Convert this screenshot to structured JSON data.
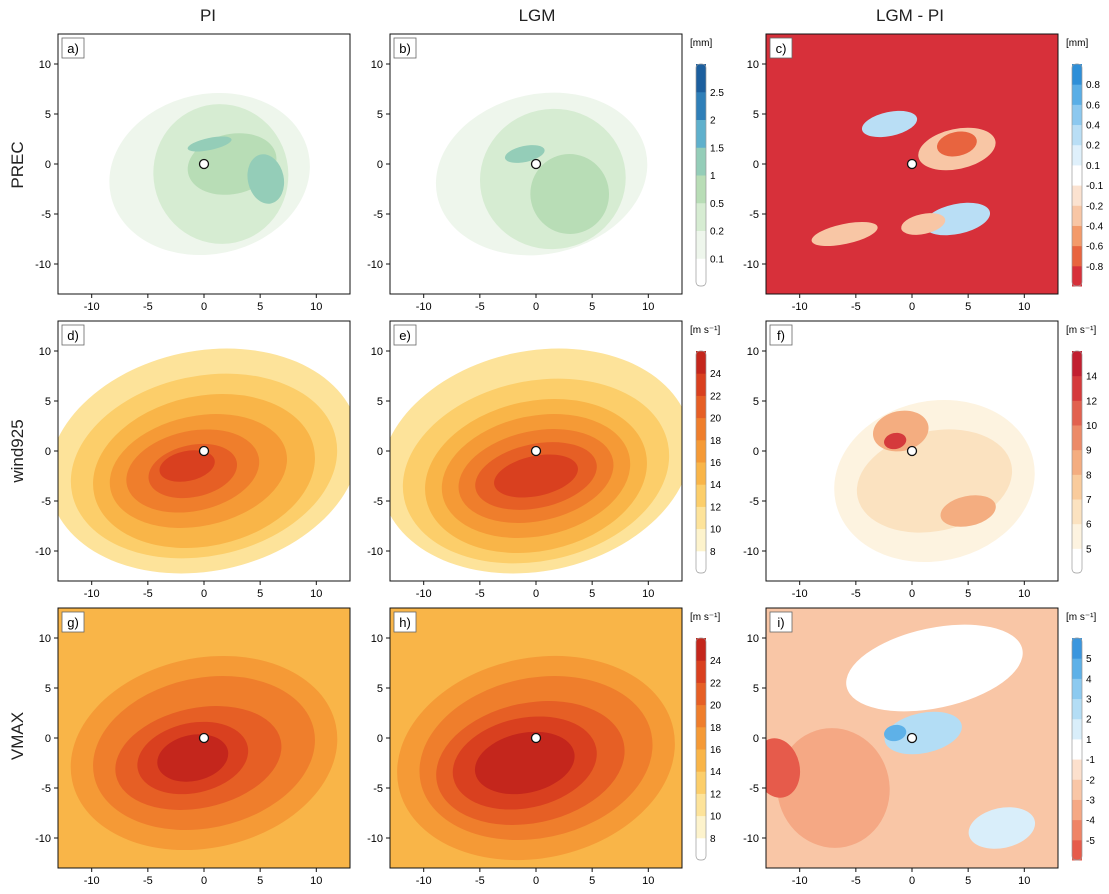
{
  "columns": [
    "PI",
    "LGM",
    "LGM - PI"
  ],
  "rows": [
    "PREC",
    "wind925",
    "VMAX"
  ],
  "chart_data": [
    {
      "type": "heatmap",
      "panel": "a)",
      "row": "PREC",
      "column": "PI",
      "xlim": [
        -13,
        13
      ],
      "ylim": [
        -13,
        13
      ],
      "xticks": [
        -10,
        -5,
        0,
        5,
        10
      ],
      "yticks": [
        10,
        5,
        0,
        -5,
        -10
      ],
      "colorbar": {
        "unit": "[mm]",
        "ticks": [
          "2.5",
          "2",
          "1.5",
          "1",
          "0.5",
          "0.2",
          "0.1"
        ],
        "colors": [
          "#ffffff",
          "#eef6ec",
          "#d6ecd2",
          "#b8ddb6",
          "#94cdb8",
          "#5fb0cc",
          "#2f7fb8",
          "#1c5f9e"
        ]
      },
      "fields": [
        {
          "cx": 0.5,
          "cy": -1,
          "rx": 9,
          "ry": 8,
          "lvl": 1
        },
        {
          "cx": 1.5,
          "cy": -1,
          "rx": 6,
          "ry": 7,
          "lvl": 2
        },
        {
          "cx": 2.5,
          "cy": 0,
          "rx": 4,
          "ry": 3,
          "lvl": 3
        },
        {
          "cx": 5.5,
          "cy": -1.5,
          "rx": 1.6,
          "ry": 2.5,
          "lvl": 4
        },
        {
          "cx": 0.5,
          "cy": 2,
          "rx": 2,
          "ry": 0.6,
          "lvl": 4
        }
      ]
    },
    {
      "type": "heatmap",
      "panel": "b)",
      "row": "PREC",
      "column": "LGM",
      "xlim": [
        -13,
        13
      ],
      "ylim": [
        -13,
        13
      ],
      "xticks": [
        -10,
        -5,
        0,
        5,
        10
      ],
      "yticks": [
        10,
        5,
        0,
        -5,
        -10
      ],
      "colorbar": {
        "unit": "[mm]",
        "ticks": [
          "2.5",
          "2",
          "1.5",
          "1",
          "0.5",
          "0.2",
          "0.1"
        ],
        "colors": [
          "#ffffff",
          "#eef6ec",
          "#d6ecd2",
          "#b8ddb6",
          "#94cdb8",
          "#5fb0cc",
          "#2f7fb8",
          "#1c5f9e"
        ]
      },
      "fields": [
        {
          "cx": 0.5,
          "cy": -1,
          "rx": 9.5,
          "ry": 8,
          "lvl": 1
        },
        {
          "cx": 1.5,
          "cy": -1.5,
          "rx": 6.5,
          "ry": 7,
          "lvl": 2
        },
        {
          "cx": 3,
          "cy": -3,
          "rx": 3.5,
          "ry": 4,
          "lvl": 3
        },
        {
          "cx": -1,
          "cy": 1,
          "rx": 1.8,
          "ry": 0.8,
          "lvl": 4
        }
      ]
    },
    {
      "type": "heatmap",
      "panel": "c)",
      "row": "PREC",
      "column": "LGM - PI",
      "xlim": [
        -13,
        13
      ],
      "ylim": [
        -13,
        13
      ],
      "xticks": [
        -10,
        -5,
        0,
        5,
        10
      ],
      "yticks": [
        10,
        5,
        0,
        -5,
        -10
      ],
      "colorbar": {
        "unit": "[mm]",
        "ticks": [
          "0.8",
          "0.6",
          "0.4",
          "0.2",
          "0.1",
          "-0.1",
          "-0.2",
          "-0.4",
          "-0.6",
          "-0.8"
        ],
        "colors": [
          "#d7303a",
          "#e8643f",
          "#f39a6a",
          "#f8c6a5",
          "#fbe2d0",
          "#ffffff",
          "#dff0fb",
          "#b9def5",
          "#8cc8ef",
          "#5aaee6",
          "#2e8fd8"
        ]
      },
      "fields": [
        {
          "cx": 4,
          "cy": 1.5,
          "rx": 3.5,
          "ry": 2,
          "lvl": 3
        },
        {
          "cx": 4,
          "cy": 2,
          "rx": 1.8,
          "ry": 1.2,
          "lvl": 1
        },
        {
          "cx": -2,
          "cy": 4,
          "rx": 2.5,
          "ry": 1.2,
          "lvl": 7
        },
        {
          "cx": 4,
          "cy": -5.5,
          "rx": 3,
          "ry": 1.5,
          "lvl": 7
        },
        {
          "cx": -6,
          "cy": -7,
          "rx": 3,
          "ry": 1,
          "lvl": 3
        },
        {
          "cx": 1,
          "cy": -6,
          "rx": 2,
          "ry": 1,
          "lvl": 3
        }
      ]
    },
    {
      "type": "heatmap",
      "panel": "d)",
      "row": "wind925",
      "column": "PI",
      "xlim": [
        -13,
        13
      ],
      "ylim": [
        -13,
        13
      ],
      "xticks": [
        -10,
        -5,
        0,
        5,
        10
      ],
      "yticks": [
        10,
        5,
        0,
        -5,
        -10
      ],
      "colorbar": {
        "unit": "[m s⁻¹]",
        "ticks": [
          "24",
          "22",
          "20",
          "18",
          "16",
          "14",
          "12",
          "10",
          "8"
        ],
        "colors": [
          "#ffffff",
          "#fdf3cc",
          "#fde39a",
          "#fcce6a",
          "#f9b548",
          "#f59a36",
          "#ef7e2c",
          "#e65f25",
          "#d9401f",
          "#c4261c"
        ]
      },
      "fields": [
        {
          "cx": 0,
          "cy": -1,
          "rx": 14,
          "ry": 11,
          "lvl": 2
        },
        {
          "cx": 0,
          "cy": -1.5,
          "rx": 12,
          "ry": 9,
          "lvl": 3
        },
        {
          "cx": 0,
          "cy": -2,
          "rx": 10,
          "ry": 7.5,
          "lvl": 4
        },
        {
          "cx": -0.5,
          "cy": -2,
          "rx": 8,
          "ry": 5.5,
          "lvl": 5
        },
        {
          "cx": -1,
          "cy": -2,
          "rx": 6,
          "ry": 4,
          "lvl": 6
        },
        {
          "cx": -1,
          "cy": -2,
          "rx": 4,
          "ry": 2.6,
          "lvl": 7
        },
        {
          "cx": -1.5,
          "cy": -1.5,
          "rx": 2.5,
          "ry": 1.5,
          "lvl": 8
        }
      ]
    },
    {
      "type": "heatmap",
      "panel": "e)",
      "row": "wind925",
      "column": "LGM",
      "xlim": [
        -13,
        13
      ],
      "ylim": [
        -13,
        13
      ],
      "xticks": [
        -10,
        -5,
        0,
        5,
        10
      ],
      "yticks": [
        10,
        5,
        0,
        -5,
        -10
      ],
      "colorbar": {
        "unit": "[m s⁻¹]",
        "ticks": [
          "24",
          "22",
          "20",
          "18",
          "16",
          "14",
          "12",
          "10",
          "8"
        ],
        "colors": [
          "#ffffff",
          "#fdf3cc",
          "#fde39a",
          "#fcce6a",
          "#f9b548",
          "#f59a36",
          "#ef7e2c",
          "#e65f25",
          "#d9401f",
          "#c4261c"
        ]
      },
      "fields": [
        {
          "cx": 0,
          "cy": -1,
          "rx": 14,
          "ry": 11,
          "lvl": 2
        },
        {
          "cx": 0,
          "cy": -2,
          "rx": 12,
          "ry": 9,
          "lvl": 3
        },
        {
          "cx": 0,
          "cy": -2.5,
          "rx": 10,
          "ry": 7.5,
          "lvl": 4
        },
        {
          "cx": 0,
          "cy": -2.5,
          "rx": 8.5,
          "ry": 6,
          "lvl": 5
        },
        {
          "cx": 0,
          "cy": -2.5,
          "rx": 7,
          "ry": 4.5,
          "lvl": 6
        },
        {
          "cx": 0,
          "cy": -2.5,
          "rx": 5.5,
          "ry": 3.2,
          "lvl": 7
        },
        {
          "cx": 0,
          "cy": -2.5,
          "rx": 3.8,
          "ry": 2,
          "lvl": 8
        }
      ]
    },
    {
      "type": "heatmap",
      "panel": "f)",
      "row": "wind925",
      "column": "LGM - PI",
      "xlim": [
        -13,
        13
      ],
      "ylim": [
        -13,
        13
      ],
      "xticks": [
        -10,
        -5,
        0,
        5,
        10
      ],
      "yticks": [
        10,
        5,
        0,
        -5,
        -10
      ],
      "colorbar": {
        "unit": "[m s⁻¹]",
        "ticks": [
          "14",
          "12",
          "10",
          "9",
          "8",
          "7",
          "6",
          "5"
        ],
        "colors": [
          "#ffffff",
          "#fdf3e0",
          "#fbe2c0",
          "#f9cb9c",
          "#f4ad80",
          "#ec8a68",
          "#e2614f",
          "#d53a3c",
          "#c21f30"
        ]
      },
      "fields": [
        {
          "cx": 2,
          "cy": -3,
          "rx": 9,
          "ry": 8,
          "lvl": 1
        },
        {
          "cx": 2,
          "cy": -3,
          "rx": 7,
          "ry": 5,
          "lvl": 2
        },
        {
          "cx": -1,
          "cy": 2,
          "rx": 2.5,
          "ry": 2,
          "lvl": 4
        },
        {
          "cx": -1.5,
          "cy": 1,
          "rx": 1,
          "ry": 0.8,
          "lvl": 7
        },
        {
          "cx": 5,
          "cy": -6,
          "rx": 2.5,
          "ry": 1.5,
          "lvl": 4
        }
      ]
    },
    {
      "type": "heatmap",
      "panel": "g)",
      "row": "VMAX",
      "column": "PI",
      "xlim": [
        -13,
        13
      ],
      "ylim": [
        -13,
        13
      ],
      "xticks": [
        -10,
        -5,
        0,
        5,
        10
      ],
      "yticks": [
        10,
        5,
        0,
        -5,
        -10
      ],
      "colorbar": {
        "unit": "[m s⁻¹]",
        "ticks": [
          "24",
          "22",
          "20",
          "18",
          "16",
          "14",
          "12",
          "10",
          "8"
        ],
        "colors": [
          "#ffffff",
          "#fdf3cc",
          "#fde39a",
          "#fcce6a",
          "#f9b548",
          "#f59a36",
          "#ef7e2c",
          "#e65f25",
          "#d9401f",
          "#c4261c"
        ]
      },
      "background_level": 4,
      "fields": [
        {
          "cx": 0,
          "cy": -1.5,
          "rx": 12,
          "ry": 9.5,
          "lvl": 5
        },
        {
          "cx": 0,
          "cy": -1.5,
          "rx": 10,
          "ry": 7.5,
          "lvl": 6
        },
        {
          "cx": -0.5,
          "cy": -2,
          "rx": 7.5,
          "ry": 5,
          "lvl": 7
        },
        {
          "cx": -1,
          "cy": -2,
          "rx": 5,
          "ry": 3.5,
          "lvl": 8
        },
        {
          "cx": -1,
          "cy": -2,
          "rx": 3.2,
          "ry": 2.3,
          "lvl": 9
        }
      ]
    },
    {
      "type": "heatmap",
      "panel": "h)",
      "row": "VMAX",
      "column": "LGM",
      "xlim": [
        -13,
        13
      ],
      "ylim": [
        -13,
        13
      ],
      "xticks": [
        -10,
        -5,
        0,
        5,
        10
      ],
      "yticks": [
        10,
        5,
        0,
        -5,
        -10
      ],
      "colorbar": {
        "unit": "[m s⁻¹]",
        "ticks": [
          "24",
          "22",
          "20",
          "18",
          "16",
          "14",
          "12",
          "10",
          "8"
        ],
        "colors": [
          "#ffffff",
          "#fdf3cc",
          "#fde39a",
          "#fcce6a",
          "#f9b548",
          "#f59a36",
          "#ef7e2c",
          "#e65f25",
          "#d9401f",
          "#c4261c"
        ]
      },
      "background_level": 4,
      "fields": [
        {
          "cx": 0,
          "cy": -2,
          "rx": 12.5,
          "ry": 10,
          "lvl": 5
        },
        {
          "cx": 0,
          "cy": -2,
          "rx": 10.5,
          "ry": 8,
          "lvl": 6
        },
        {
          "cx": -0.5,
          "cy": -2.5,
          "rx": 8.5,
          "ry": 6,
          "lvl": 7
        },
        {
          "cx": -1,
          "cy": -2.5,
          "rx": 6.5,
          "ry": 4.5,
          "lvl": 8
        },
        {
          "cx": -1,
          "cy": -2.5,
          "rx": 4.5,
          "ry": 3,
          "lvl": 9
        }
      ]
    },
    {
      "type": "heatmap",
      "panel": "i)",
      "row": "VMAX",
      "column": "LGM - PI",
      "xlim": [
        -13,
        13
      ],
      "ylim": [
        -13,
        13
      ],
      "xticks": [
        -10,
        -5,
        0,
        5,
        10
      ],
      "yticks": [
        10,
        5,
        0,
        -5,
        -10
      ],
      "colorbar": {
        "unit": "[m s⁻¹]",
        "ticks": [
          "5",
          "4",
          "3",
          "2",
          "1",
          "-1",
          "-2",
          "-3",
          "-4",
          "-5"
        ],
        "colors": [
          "#e65b4b",
          "#ef8466",
          "#f5a884",
          "#f9c6a6",
          "#fce0cd",
          "#ffffff",
          "#d9eefa",
          "#b3ddf5",
          "#8ccaf0",
          "#5eb1e8",
          "#3a96de"
        ]
      },
      "background_level": 3,
      "fields": [
        {
          "cx": 2,
          "cy": 7,
          "rx": 8,
          "ry": 4,
          "lvl": 5
        },
        {
          "cx": -7,
          "cy": -5,
          "rx": 5,
          "ry": 6,
          "lvl": 2
        },
        {
          "cx": -12,
          "cy": -3,
          "rx": 2,
          "ry": 3,
          "lvl": 0
        },
        {
          "cx": 1,
          "cy": 0.5,
          "rx": 3.5,
          "ry": 2,
          "lvl": 7
        },
        {
          "cx": -1.5,
          "cy": 0.5,
          "rx": 1,
          "ry": 0.8,
          "lvl": 9
        },
        {
          "cx": 8,
          "cy": -9,
          "rx": 3,
          "ry": 2,
          "lvl": 6
        }
      ]
    }
  ]
}
